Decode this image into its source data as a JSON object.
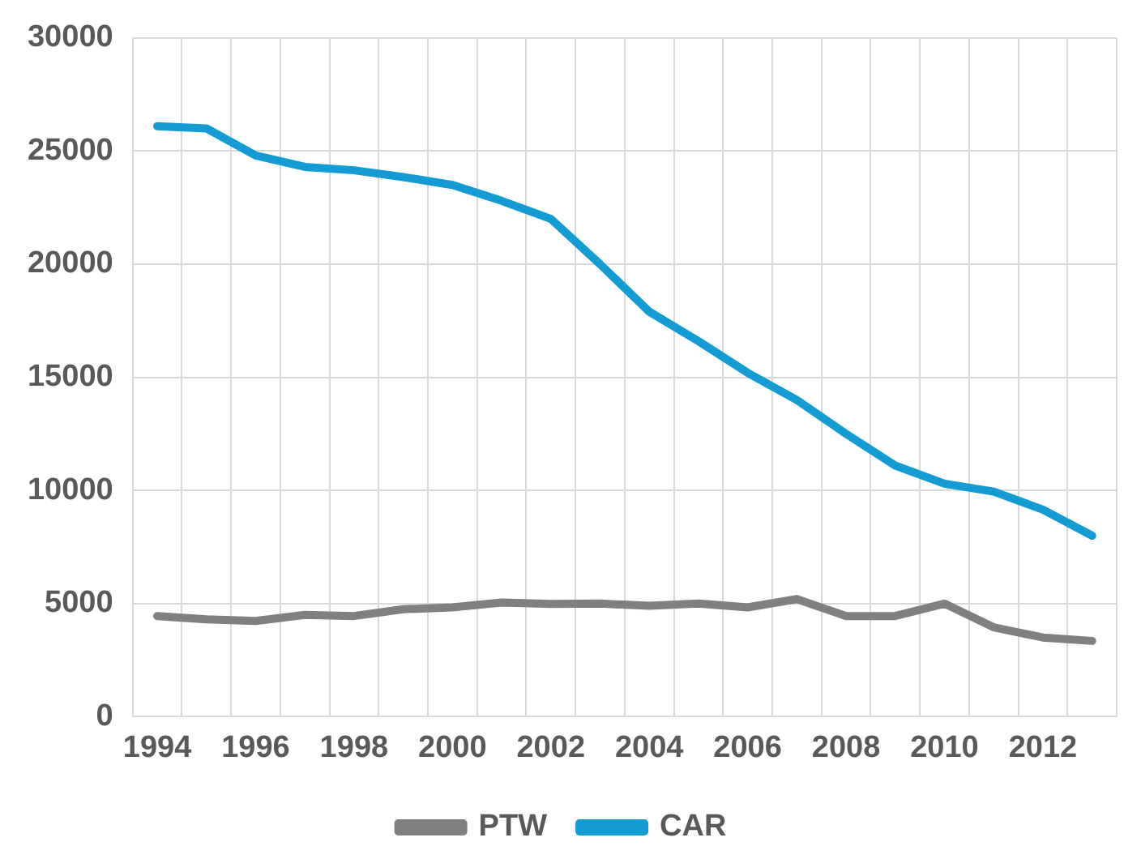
{
  "chart_data": {
    "type": "line",
    "categories": [
      "1994",
      null,
      "1996",
      null,
      "1998",
      null,
      "2000",
      null,
      "2002",
      null,
      "2004",
      null,
      "2006",
      null,
      "2008",
      null,
      "2010",
      null,
      "2012",
      null
    ],
    "series": [
      {
        "name": "PTW",
        "color": "#808080",
        "values": [
          4450,
          4300,
          4230,
          4500,
          4450,
          4750,
          4830,
          5050,
          4980,
          5000,
          4900,
          5000,
          4830,
          5200,
          4450,
          4450,
          5000,
          3950,
          3500,
          3350
        ]
      },
      {
        "name": "CAR",
        "color": "#139bd3",
        "values": [
          26100,
          26000,
          24800,
          24300,
          24150,
          23850,
          23500,
          22800,
          22000,
          20000,
          17900,
          16600,
          15200,
          14000,
          12500,
          11100,
          10300,
          9950,
          9150,
          8000
        ]
      }
    ],
    "ylim": [
      0,
      30000
    ],
    "yticks": [
      0,
      5000,
      10000,
      15000,
      20000,
      25000,
      30000
    ],
    "grid": true,
    "legend": "bottom",
    "marker": "none",
    "line_style": "solid"
  }
}
